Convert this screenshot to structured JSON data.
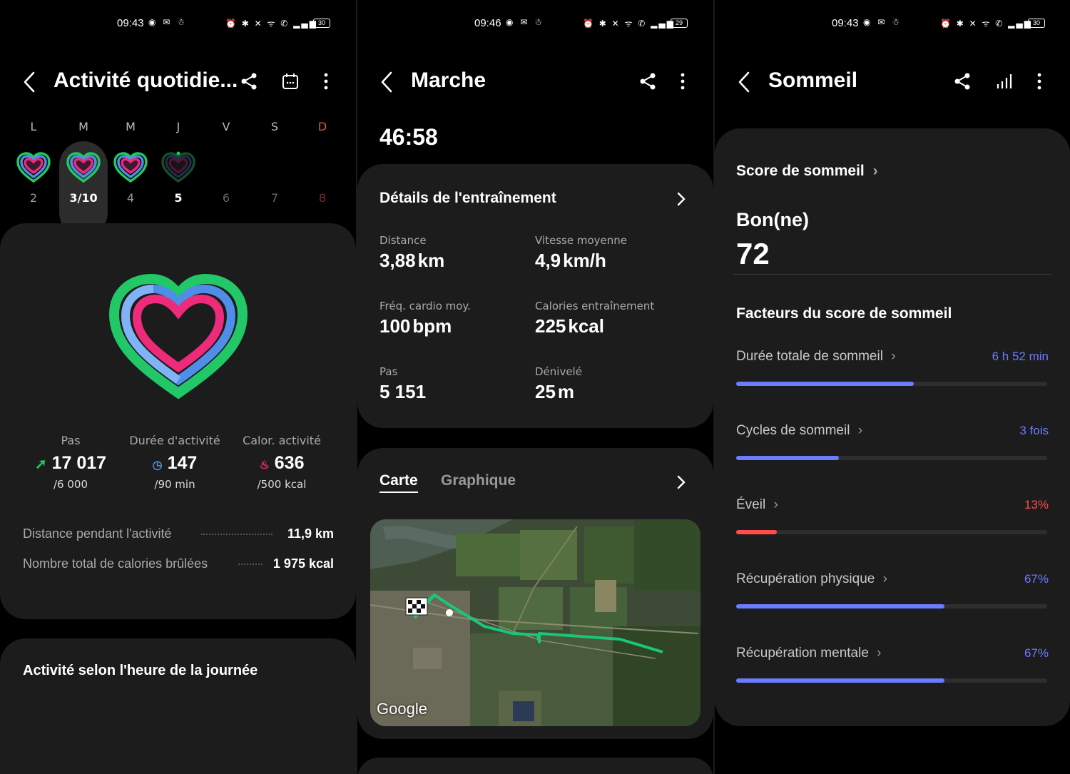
{
  "colors": {
    "accent_blue": "#6b7cff",
    "warning_red": "#ff4d4d",
    "ring_green": "#22c767",
    "ring_blue": "#4f8ee8",
    "ring_pink": "#ee2a7b",
    "card_bg": "#1c1c1c"
  },
  "panel1": {
    "status": {
      "time": "09:43",
      "battery": "30"
    },
    "header": {
      "title": "Activité quotidie...",
      "icons": [
        "share-icon",
        "calendar-icon",
        "more-icon"
      ]
    },
    "week": {
      "days": [
        {
          "letter": "L",
          "num": "2"
        },
        {
          "letter": "M",
          "num": "3/10"
        },
        {
          "letter": "M",
          "num": "4"
        },
        {
          "letter": "J",
          "num": "5"
        },
        {
          "letter": "V",
          "num": "6"
        },
        {
          "letter": "S",
          "num": "7"
        },
        {
          "letter": "D",
          "num": "8"
        }
      ],
      "selected_index": 1
    },
    "stats": [
      {
        "label": "Pas",
        "value": "17 017",
        "goal": "/6 000",
        "icon": "steps-icon"
      },
      {
        "label": "Durée d'activité",
        "value": "147",
        "goal": "/90 min",
        "icon": "clock-icon"
      },
      {
        "label": "Calor. activité",
        "value": "636",
        "goal": "/500 kcal",
        "icon": "flame-icon"
      }
    ],
    "summary": [
      {
        "label": "Distance pendant l'activité",
        "value": "11,9 km"
      },
      {
        "label": "Nombre total de calories brûlées",
        "value": "1 975 kcal"
      }
    ],
    "section_title": "Activité selon l'heure de la journée"
  },
  "panel2": {
    "status": {
      "time": "09:46",
      "battery": "29"
    },
    "header": {
      "title": "Marche"
    },
    "duration": "46:58",
    "details_title": "Détails de l'entraînement",
    "metrics": [
      {
        "label": "Distance",
        "value": "3,88",
        "unit": "km"
      },
      {
        "label": "Vitesse moyenne",
        "value": "4,9",
        "unit": "km/h"
      },
      {
        "label": "Fréq. cardio moy.",
        "value": "100",
        "unit": "bpm"
      },
      {
        "label": "Calories entraînement",
        "value": "225",
        "unit": "kcal"
      },
      {
        "label": "Pas",
        "value": "5 151",
        "unit": ""
      },
      {
        "label": "Dénivelé",
        "value": "25",
        "unit": "m"
      }
    ],
    "tabs": [
      {
        "label": "Carte",
        "active": true
      },
      {
        "label": "Graphique",
        "active": false
      }
    ],
    "map_brand": "Google"
  },
  "panel3": {
    "status": {
      "time": "09:43",
      "battery": "30"
    },
    "header": {
      "title": "Sommeil"
    },
    "score_link": "Score de sommeil",
    "rating": "Bon(ne)",
    "score": "72",
    "factors_title": "Facteurs du score de sommeil",
    "factors": [
      {
        "label": "Durée totale de sommeil",
        "value": "6 h 52 min",
        "level": 0.57,
        "color": "#6b7cff"
      },
      {
        "label": "Cycles de sommeil",
        "value": "3 fois",
        "level": 0.33,
        "color": "#6b7cff"
      },
      {
        "label": "Éveil",
        "value": "13%",
        "level": 0.13,
        "color": "#ff4d4d"
      },
      {
        "label": "Récupération physique",
        "value": "67%",
        "level": 0.67,
        "color": "#6b7cff"
      },
      {
        "label": "Récupération mentale",
        "value": "67%",
        "level": 0.67,
        "color": "#6b7cff"
      }
    ]
  }
}
